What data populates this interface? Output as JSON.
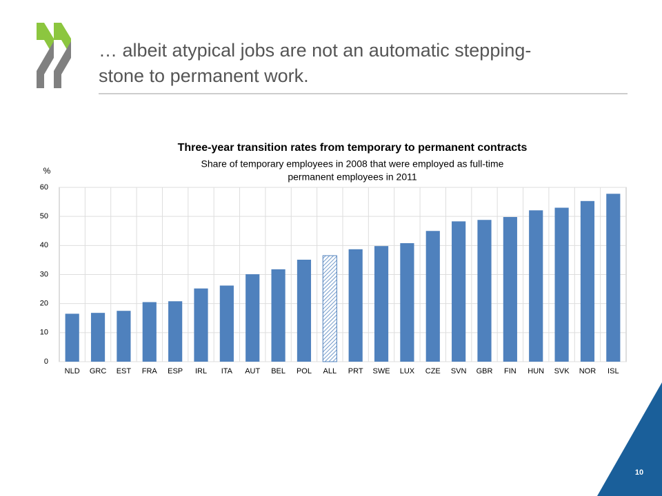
{
  "slide": {
    "title_lines": [
      "… albeit atypical jobs are not an automatic stepping-",
      "stone to permanent work."
    ],
    "page_number": "10"
  },
  "chart_data": {
    "type": "bar",
    "title": "Three-year transition rates from temporary to permanent contracts",
    "subtitle_lines": [
      "Share of temporary employees in 2008 that were employed as full-time",
      "permanent employees in 2011"
    ],
    "y_label": "%",
    "categories": [
      "NLD",
      "GRC",
      "EST",
      "FRA",
      "ESP",
      "IRL",
      "ITA",
      "AUT",
      "BEL",
      "POL",
      "ALL",
      "PRT",
      "SWE",
      "LUX",
      "CZE",
      "SVN",
      "GBR",
      "FIN",
      "HUN",
      "SVK",
      "NOR",
      "ISL"
    ],
    "values": [
      16.5,
      16.8,
      17.5,
      20.5,
      20.8,
      25.2,
      26.2,
      30.1,
      31.8,
      35.1,
      36.5,
      38.7,
      39.8,
      40.8,
      45.0,
      48.3,
      48.8,
      49.8,
      52.1,
      53.0,
      55.3,
      57.8
    ],
    "color": "#4f81bd",
    "hatched_category": "ALL",
    "ylim": [
      0,
      60
    ],
    "yticks": [
      0,
      10,
      20,
      30,
      40,
      50,
      60
    ],
    "grid": true
  }
}
